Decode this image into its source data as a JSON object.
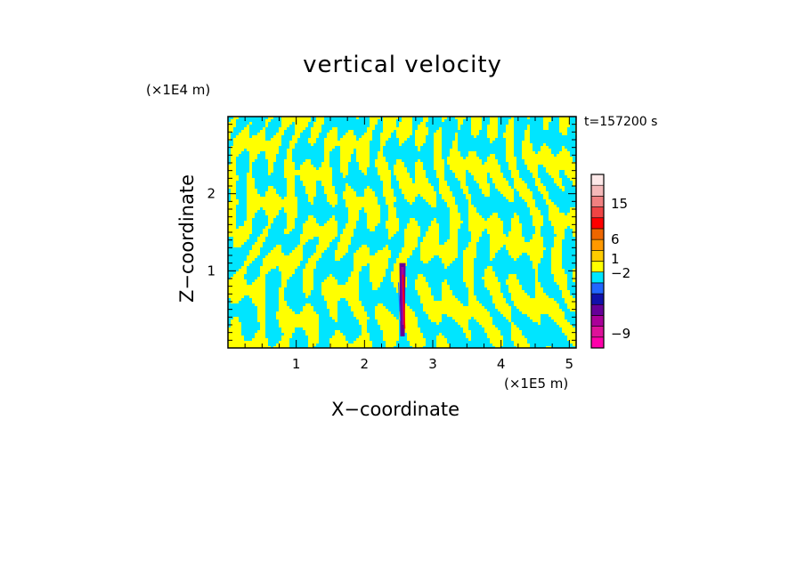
{
  "chart_data": {
    "type": "heatmap",
    "title": "vertical velocity",
    "xlabel": "X−coordinate",
    "ylabel": "Z−coordinate",
    "x_unit": "(×1E5 m)",
    "y_unit": "(×1E4 m)",
    "annotation": "t=157200 s",
    "xlim": [
      0.0,
      5.1
    ],
    "ylim": [
      0.0,
      3.0
    ],
    "x_ticks": [
      {
        "value": 1,
        "label": "1"
      },
      {
        "value": 2,
        "label": "2"
      },
      {
        "value": 3,
        "label": "3"
      },
      {
        "value": 4,
        "label": "4"
      },
      {
        "value": 5,
        "label": "5"
      }
    ],
    "y_ticks": [
      {
        "value": 1,
        "label": "1"
      },
      {
        "value": 2,
        "label": "2"
      }
    ],
    "colorbar": {
      "levels": [
        {
          "label": "",
          "color": "#ff00aa"
        },
        {
          "label": "",
          "color": "#dd1199"
        },
        {
          "label": "",
          "color": "#aa0099"
        },
        {
          "label": "",
          "color": "#660099"
        },
        {
          "label": "",
          "color": "#1111aa"
        },
        {
          "label": "",
          "color": "#2266ff"
        },
        {
          "label": "",
          "color": "#00e5ff"
        },
        {
          "label": "",
          "color": "#ffff00"
        },
        {
          "label": "",
          "color": "#ffcc00"
        },
        {
          "label": "",
          "color": "#ff9900"
        },
        {
          "label": "",
          "color": "#ee6600"
        },
        {
          "label": "",
          "color": "#ff0000"
        },
        {
          "label": "",
          "color": "#ee4444"
        },
        {
          "label": "",
          "color": "#f08080"
        },
        {
          "label": "",
          "color": "#f4b8b8"
        },
        {
          "label": "",
          "color": "#fde8e8"
        }
      ],
      "labels": [
        "15",
        "6",
        "1",
        "−2",
        "−9"
      ],
      "label_value_positions": [
        15,
        6,
        1,
        -2,
        -9
      ]
    },
    "dominant_colors": {
      "positive": "#ffff00",
      "negative": "#00e5ff"
    },
    "updraft_core_x": 2.55
  }
}
